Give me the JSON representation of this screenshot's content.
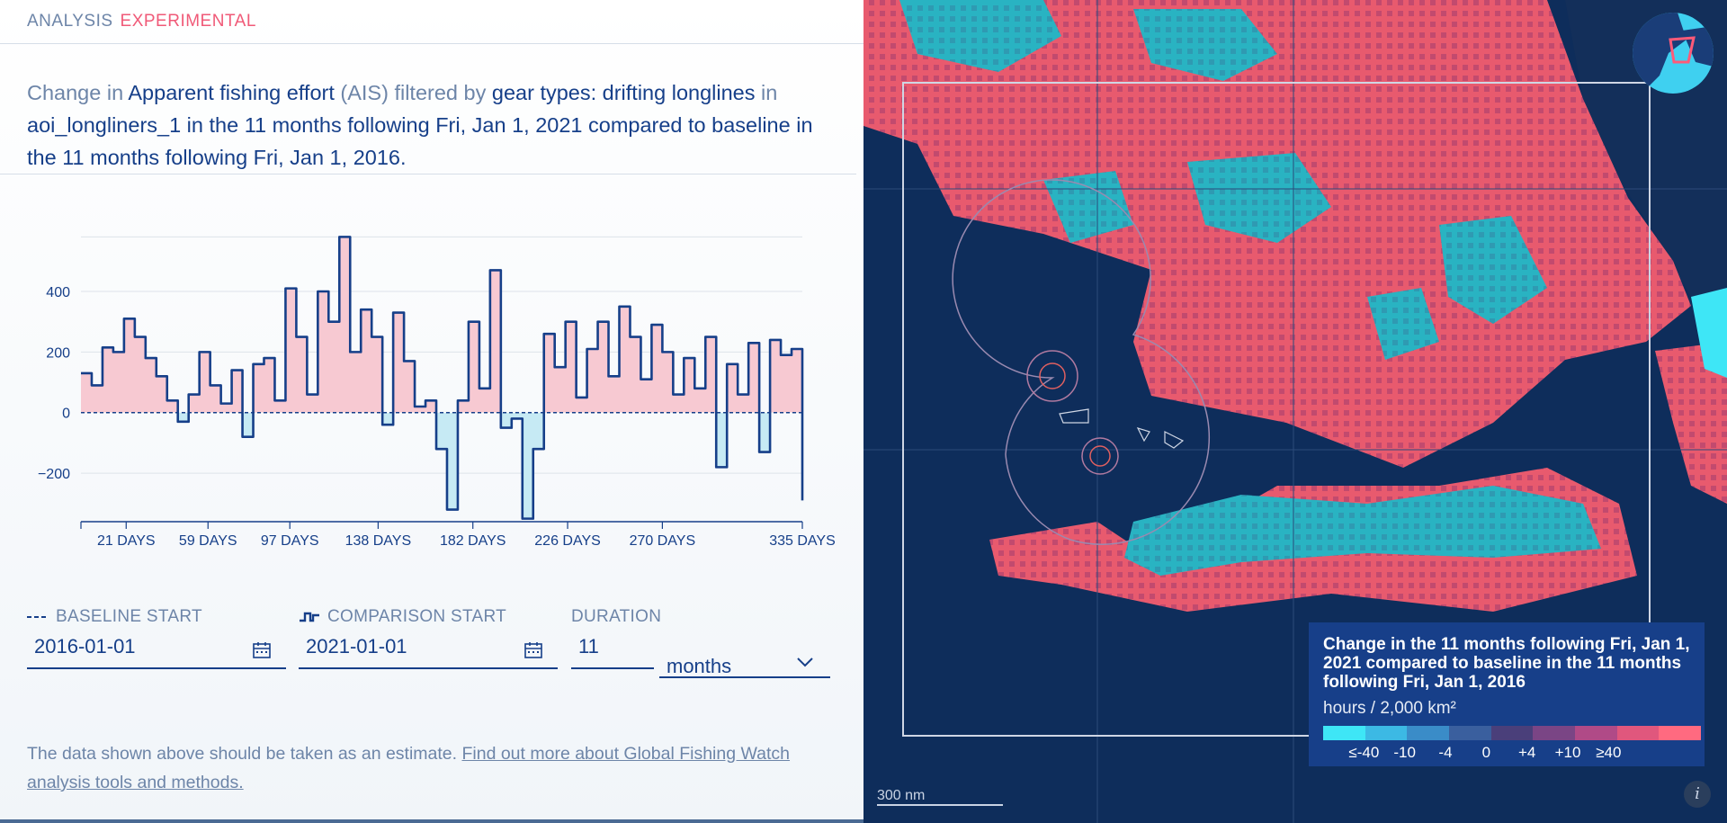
{
  "header": {
    "title": "ANALYSIS",
    "badge": "EXPERIMENTAL"
  },
  "description": {
    "p1": "Change in ",
    "dataset": "Apparent fishing effort",
    "p2": " (AIS) filtered by ",
    "filter": "gear types: drifting longlines",
    "p3": " in ",
    "rest": "aoi_longliners_1 in the 11 months following Fri, Jan 1, 2021 compared to baseline in the 11 months following Fri, Jan 1, 2016."
  },
  "chart_data": {
    "type": "line",
    "title": "",
    "xlabel": "",
    "ylabel": "",
    "x_ticks": [
      21,
      59,
      97,
      138,
      182,
      226,
      270,
      335
    ],
    "x_tick_labels": [
      "21 DAYS",
      "59 DAYS",
      "97 DAYS",
      "138 DAYS",
      "182 DAYS",
      "226 DAYS",
      "270 DAYS",
      "335 DAYS"
    ],
    "y_ticks": [
      -200,
      0,
      200,
      400
    ],
    "y_tick_labels": [
      "−200",
      "0",
      "200",
      "400"
    ],
    "xlim": [
      0,
      335
    ],
    "ylim": [
      -360,
      590
    ],
    "baseline": 0,
    "series": [
      {
        "name": "Change",
        "x": [
          0,
          5,
          10,
          15,
          20,
          25,
          30,
          35,
          40,
          45,
          50,
          55,
          60,
          65,
          70,
          75,
          80,
          85,
          90,
          95,
          100,
          105,
          110,
          115,
          120,
          125,
          130,
          135,
          140,
          145,
          150,
          155,
          160,
          165,
          170,
          175,
          180,
          185,
          190,
          195,
          200,
          205,
          210,
          215,
          220,
          225,
          230,
          235,
          240,
          245,
          250,
          255,
          260,
          265,
          270,
          275,
          280,
          285,
          290,
          295,
          300,
          305,
          310,
          315,
          320,
          325,
          330,
          335
        ],
        "values": [
          130,
          90,
          215,
          200,
          310,
          250,
          180,
          120,
          40,
          -30,
          60,
          200,
          90,
          30,
          140,
          -80,
          160,
          180,
          40,
          410,
          250,
          60,
          400,
          300,
          580,
          200,
          340,
          250,
          -40,
          330,
          170,
          20,
          40,
          -120,
          -320,
          40,
          300,
          80,
          470,
          -50,
          -20,
          -350,
          -120,
          260,
          150,
          300,
          50,
          210,
          300,
          120,
          350,
          250,
          110,
          290,
          200,
          60,
          180,
          80,
          250,
          -180,
          160,
          60,
          230,
          -130,
          240,
          190,
          210,
          -290
        ]
      }
    ]
  },
  "controls": {
    "baseline": {
      "label": "BASELINE START",
      "value": "2016-01-01"
    },
    "comparison": {
      "label": "COMPARISON START",
      "value": "2021-01-01"
    },
    "duration": {
      "label": "DURATION",
      "value": "11",
      "unit": "months"
    }
  },
  "footnote": {
    "text": "The data shown above should be taken as an estimate. ",
    "link": "Find out more about Global Fishing Watch analysis tools and methods."
  },
  "legend": {
    "title": "Change in the 11 months following Fri, Jan 1, 2021 compared to baseline in the 11 months following Fri, Jan 1, 2016",
    "unit": "hours / 2,000 km²",
    "colors": [
      "#3ee6f6",
      "#3cb9e4",
      "#3a8cc8",
      "#3a5f9e",
      "#4a3f7a",
      "#7a4585",
      "#b04a87",
      "#e0577d",
      "#ff6a80"
    ],
    "tick_labels": [
      "≤-40",
      "-10",
      "-4",
      "0",
      "+4",
      "+10",
      "≥40"
    ]
  },
  "map": {
    "scale_label": "300 nm"
  }
}
